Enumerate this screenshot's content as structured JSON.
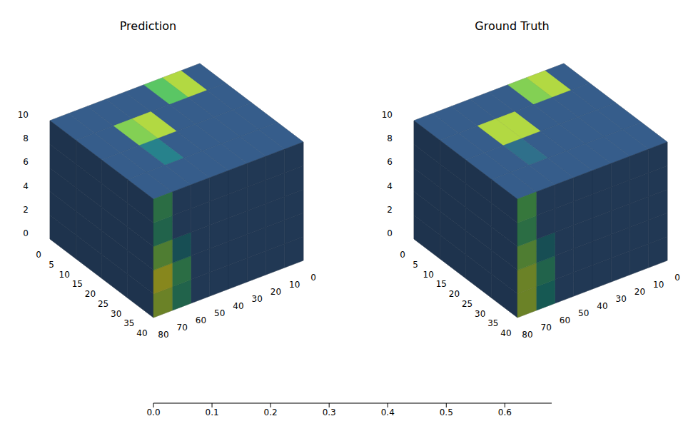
{
  "chart_data": [
    {
      "type": "voxel",
      "title": "Prediction",
      "xlim": [
        0,
        40
      ],
      "xticks": [
        0,
        5,
        10,
        15,
        20,
        25,
        30,
        35,
        40
      ],
      "ylim": [
        0,
        80
      ],
      "yticks": [
        0,
        10,
        20,
        30,
        40,
        50,
        60,
        70,
        80
      ],
      "zlim": [
        0,
        10
      ],
      "zticks": [
        0,
        2,
        4,
        6,
        8,
        10
      ],
      "top_cells": [
        [
          0.2,
          0.6,
          0.5,
          0.2,
          0.2,
          0.2,
          0.2,
          0.2
        ],
        [
          0.2,
          0.2,
          0.2,
          0.2,
          0.6,
          0.55,
          0.2,
          0.2
        ],
        [
          0.2,
          0.2,
          0.2,
          0.2,
          0.2,
          0.3,
          0.2,
          0.2
        ],
        [
          0.2,
          0.2,
          0.2,
          0.2,
          0.2,
          0.2,
          0.2,
          0.2
        ]
      ],
      "front_cells": [
        [
          0.2,
          0.2,
          0.2,
          0.2,
          0.2
        ],
        [
          0.2,
          0.2,
          0.2,
          0.2,
          0.2
        ],
        [
          0.2,
          0.2,
          0.2,
          0.2,
          0.2
        ],
        [
          0.2,
          0.2,
          0.2,
          0.2,
          0.2
        ]
      ],
      "side_cells": [
        [
          0.2,
          0.2,
          0.2,
          0.2,
          0.2
        ],
        [
          0.2,
          0.2,
          0.2,
          0.2,
          0.2
        ],
        [
          0.2,
          0.2,
          0.2,
          0.2,
          0.2
        ],
        [
          0.2,
          0.2,
          0.2,
          0.2,
          0.2
        ],
        [
          0.2,
          0.2,
          0.2,
          0.2,
          0.2
        ],
        [
          0.2,
          0.2,
          0.2,
          0.2,
          0.2
        ],
        [
          0.4,
          0.45,
          0.3,
          0.2,
          0.2
        ],
        [
          0.6,
          0.65,
          0.55,
          0.4,
          0.45
        ]
      ]
    },
    {
      "type": "voxel",
      "title": "Ground Truth",
      "xlim": [
        0,
        40
      ],
      "xticks": [
        0,
        5,
        10,
        15,
        20,
        25,
        30,
        35,
        40
      ],
      "ylim": [
        0,
        80
      ],
      "yticks": [
        0,
        10,
        20,
        30,
        40,
        50,
        60,
        70,
        80
      ],
      "zlim": [
        0,
        10
      ],
      "zticks": [
        0,
        2,
        4,
        6,
        8,
        10
      ],
      "top_cells": [
        [
          0.2,
          0.6,
          0.55,
          0.2,
          0.2,
          0.2,
          0.2,
          0.2
        ],
        [
          0.2,
          0.2,
          0.2,
          0.2,
          0.6,
          0.6,
          0.2,
          0.2
        ],
        [
          0.2,
          0.2,
          0.2,
          0.2,
          0.2,
          0.25,
          0.2,
          0.2
        ],
        [
          0.2,
          0.2,
          0.2,
          0.2,
          0.2,
          0.2,
          0.2,
          0.2
        ]
      ],
      "front_cells": [
        [
          0.2,
          0.2,
          0.2,
          0.2,
          0.2
        ],
        [
          0.2,
          0.2,
          0.2,
          0.2,
          0.2
        ],
        [
          0.2,
          0.2,
          0.2,
          0.2,
          0.2
        ],
        [
          0.2,
          0.2,
          0.2,
          0.2,
          0.2
        ]
      ],
      "side_cells": [
        [
          0.2,
          0.2,
          0.2,
          0.2,
          0.2
        ],
        [
          0.2,
          0.2,
          0.2,
          0.2,
          0.2
        ],
        [
          0.2,
          0.2,
          0.2,
          0.2,
          0.2
        ],
        [
          0.2,
          0.2,
          0.2,
          0.2,
          0.2
        ],
        [
          0.2,
          0.2,
          0.2,
          0.2,
          0.2
        ],
        [
          0.2,
          0.2,
          0.2,
          0.2,
          0.2
        ],
        [
          0.35,
          0.4,
          0.3,
          0.2,
          0.2
        ],
        [
          0.6,
          0.6,
          0.55,
          0.45,
          0.5
        ]
      ]
    },
    {
      "type": "colorbar",
      "clim": [
        0,
        0.68
      ],
      "ticks": [
        {
          "value": 0,
          "label": "0.0"
        },
        {
          "value": 0.1,
          "label": "0.1"
        },
        {
          "value": 0.2,
          "label": "0.2"
        },
        {
          "value": 0.3,
          "label": "0.3"
        },
        {
          "value": 0.4,
          "label": "0.4"
        },
        {
          "value": 0.5,
          "label": "0.5"
        },
        {
          "value": 0.6,
          "label": "0.6"
        }
      ]
    }
  ]
}
